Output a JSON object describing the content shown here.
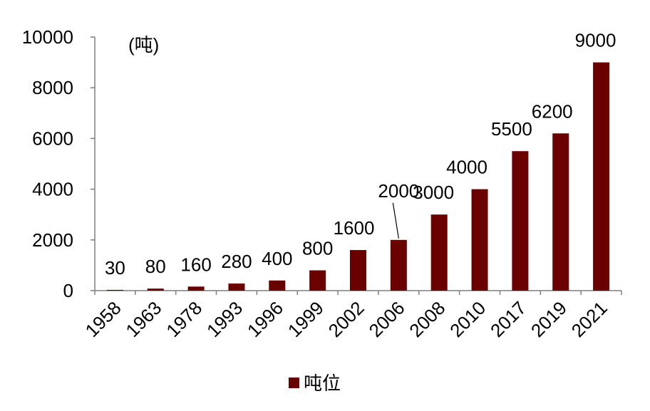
{
  "chart_data": {
    "type": "bar",
    "unit_label": "(吨)",
    "categories": [
      "1958",
      "1963",
      "1978",
      "1993",
      "1996",
      "1999",
      "2002",
      "2006",
      "2008",
      "2010",
      "2017",
      "2019",
      "2021"
    ],
    "series": [
      {
        "name": "吨位",
        "color": "#6B0000",
        "values": [
          30,
          80,
          160,
          280,
          400,
          800,
          1600,
          2000,
          3000,
          4000,
          5500,
          6200,
          9000
        ]
      }
    ],
    "data_labels": [
      "30",
      "80",
      "160",
      "280",
      "400",
      "800",
      "1600",
      "2000",
      "3000",
      "4000",
      "5500",
      "6200",
      "9000"
    ],
    "y_ticks": [
      "0",
      "2000",
      "4000",
      "6000",
      "8000",
      "10000"
    ],
    "ylim": [
      0,
      10000
    ],
    "grid": false,
    "legend_position": "bottom"
  }
}
